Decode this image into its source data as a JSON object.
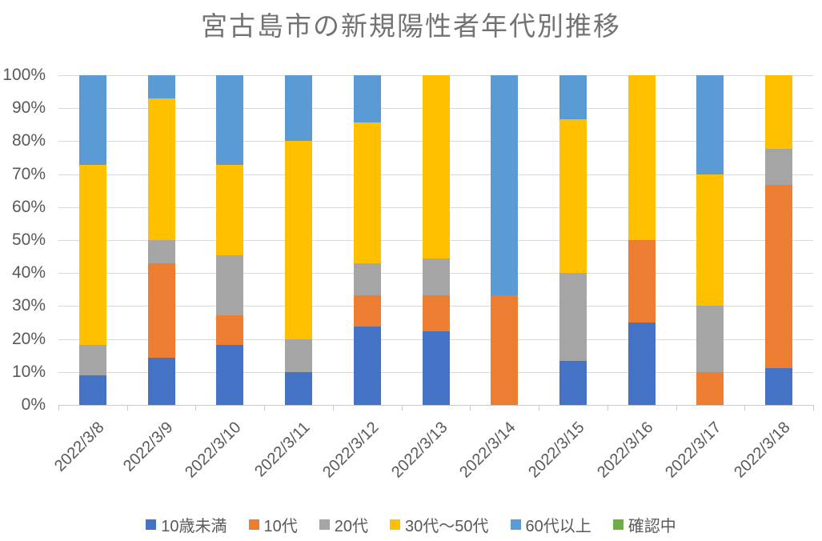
{
  "chart_data": {
    "type": "bar",
    "subtype": "stacked-100-percent",
    "title": "宮古島市の新規陽性者年代別推移",
    "xlabel": "",
    "ylabel": "",
    "ylim": [
      0,
      100
    ],
    "grid": true,
    "legend_position": "bottom",
    "y_ticks": [
      "0%",
      "10%",
      "20%",
      "30%",
      "40%",
      "50%",
      "60%",
      "70%",
      "80%",
      "90%",
      "100%"
    ],
    "categories": [
      "2022/3/8",
      "2022/3/9",
      "2022/3/10",
      "2022/3/11",
      "2022/3/12",
      "2022/3/13",
      "2022/3/14",
      "2022/3/15",
      "2022/3/16",
      "2022/3/17",
      "2022/3/18"
    ],
    "series": [
      {
        "name": "10歳未満",
        "color": "#4472C4",
        "values": [
          9.09,
          14.29,
          18.18,
          10,
          23.81,
          22.22,
          0,
          13.33,
          25,
          0,
          11.11
        ]
      },
      {
        "name": "10代",
        "color": "#ED7D31",
        "values": [
          0,
          28.57,
          9.09,
          0,
          9.52,
          11.11,
          33.33,
          0,
          25,
          10,
          55.56
        ]
      },
      {
        "name": "20代",
        "color": "#A5A5A5",
        "values": [
          9.09,
          7.14,
          18.18,
          10,
          9.52,
          11.11,
          0,
          26.67,
          0,
          20,
          11.11
        ]
      },
      {
        "name": "30代〜50代",
        "color": "#FFC000",
        "values": [
          54.55,
          42.86,
          27.27,
          60,
          42.86,
          55.56,
          0,
          46.67,
          50,
          40,
          22.22
        ]
      },
      {
        "name": "60代以上",
        "color": "#5B9BD5",
        "values": [
          27.27,
          7.14,
          27.27,
          20,
          14.29,
          0,
          66.67,
          13.33,
          0,
          30,
          0
        ]
      },
      {
        "name": "確認中",
        "color": "#70AD47",
        "values": [
          0,
          0,
          0,
          0,
          0,
          0,
          0,
          0,
          0,
          0,
          0
        ]
      }
    ]
  }
}
